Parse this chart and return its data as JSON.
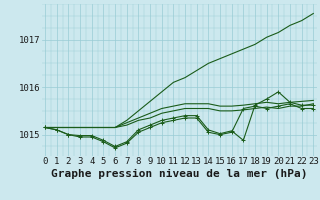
{
  "title": "Graphe pression niveau de la mer (hPa)",
  "xlabel_hours": [
    0,
    1,
    2,
    3,
    4,
    5,
    6,
    7,
    8,
    9,
    10,
    11,
    12,
    13,
    14,
    15,
    16,
    17,
    18,
    19,
    20,
    21,
    22,
    23
  ],
  "yticks": [
    1015,
    1016,
    1017
  ],
  "ylim": [
    1014.55,
    1017.75
  ],
  "xlim": [
    -0.3,
    23.3
  ],
  "background_color": "#cce8ee",
  "grid_color": "#99ccd5",
  "line_color": "#1a5c1a",
  "series_plain": [
    [
      1015.15,
      1015.15,
      1015.15,
      1015.15,
      1015.15,
      1015.15,
      1015.15,
      1015.2,
      1015.3,
      1015.35,
      1015.45,
      1015.5,
      1015.55,
      1015.55,
      1015.55,
      1015.5,
      1015.5,
      1015.52,
      1015.55,
      1015.58,
      1015.55,
      1015.6,
      1015.6,
      1015.65
    ],
    [
      1015.15,
      1015.15,
      1015.15,
      1015.15,
      1015.15,
      1015.15,
      1015.15,
      1015.25,
      1015.35,
      1015.45,
      1015.55,
      1015.6,
      1015.65,
      1015.65,
      1015.65,
      1015.6,
      1015.6,
      1015.62,
      1015.65,
      1015.68,
      1015.65,
      1015.68,
      1015.7,
      1015.72
    ],
    [
      1015.15,
      1015.15,
      1015.15,
      1015.15,
      1015.15,
      1015.15,
      1015.15,
      1015.3,
      1015.5,
      1015.7,
      1015.9,
      1016.1,
      1016.2,
      1016.35,
      1016.5,
      1016.6,
      1016.7,
      1016.8,
      1016.9,
      1017.05,
      1017.15,
      1017.3,
      1017.4,
      1017.55
    ]
  ],
  "series_marked": [
    [
      1015.15,
      1015.1,
      1015.0,
      1014.95,
      1014.95,
      1014.85,
      1014.72,
      1014.82,
      1015.05,
      1015.15,
      1015.25,
      1015.3,
      1015.35,
      1015.35,
      1015.05,
      1015.0,
      1015.05,
      1015.55,
      1015.6,
      1015.55,
      1015.6,
      1015.65,
      1015.55,
      1015.55
    ],
    [
      1015.15,
      1015.1,
      1015.0,
      1014.98,
      1014.98,
      1014.88,
      1014.75,
      1014.85,
      1015.1,
      1015.2,
      1015.3,
      1015.35,
      1015.4,
      1015.4,
      1015.1,
      1015.02,
      1015.08,
      1014.88,
      1015.62,
      1015.75,
      1015.9,
      1015.68,
      1015.62,
      1015.62
    ]
  ],
  "title_fontsize": 8,
  "tick_fontsize": 6.5
}
